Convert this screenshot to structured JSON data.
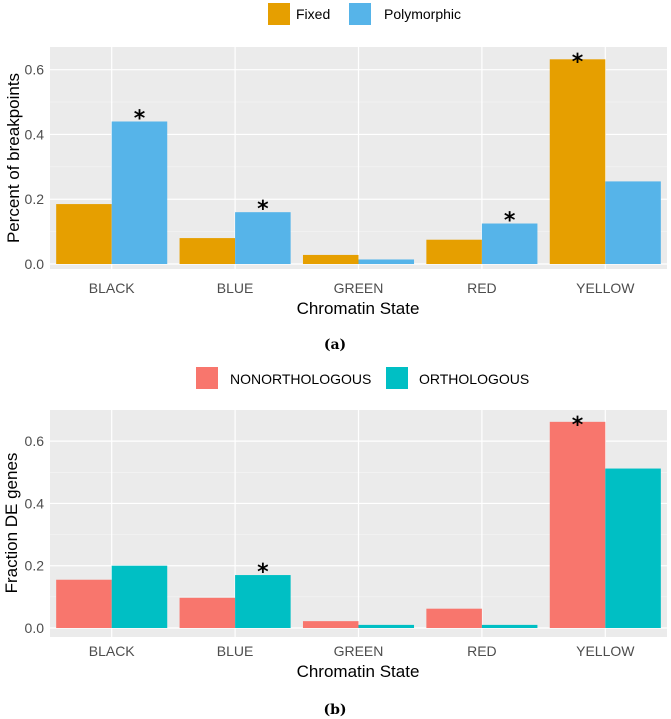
{
  "chart_data": [
    {
      "type": "bar",
      "panel_caption": "(a)",
      "categories": [
        "BLACK",
        "BLUE",
        "GREEN",
        "RED",
        "YELLOW"
      ],
      "series": [
        {
          "name": "Fixed",
          "color": "#E69F00",
          "values": [
            0.185,
            0.08,
            0.028,
            0.075,
            0.632
          ]
        },
        {
          "name": "Polymorphic",
          "color": "#56B4E9",
          "values": [
            0.44,
            0.16,
            0.014,
            0.125,
            0.255
          ]
        }
      ],
      "annotations": [
        {
          "category": "BLACK",
          "series": "Polymorphic",
          "text": "*"
        },
        {
          "category": "BLUE",
          "series": "Polymorphic",
          "text": "*"
        },
        {
          "category": "RED",
          "series": "Polymorphic",
          "text": "*"
        },
        {
          "category": "YELLOW",
          "series": "Fixed",
          "text": "*"
        }
      ],
      "ylim": [
        0,
        0.67
      ],
      "yticks": [
        0.0,
        0.2,
        0.4,
        0.6
      ],
      "ytick_labels": [
        "0.0",
        "0.2",
        "0.4",
        "0.6"
      ],
      "xlabel": "Chromatin State",
      "ylabel": "Percent of breakpoints",
      "legend_position": "top"
    },
    {
      "type": "bar",
      "panel_caption": "(b)",
      "categories": [
        "BLACK",
        "BLUE",
        "GREEN",
        "RED",
        "YELLOW"
      ],
      "series": [
        {
          "name": "NONORTHOLOGOUS",
          "color": "#F8766D",
          "values": [
            0.155,
            0.097,
            0.022,
            0.062,
            0.662
          ]
        },
        {
          "name": "ORTHOLOGOUS",
          "color": "#00BFC4",
          "values": [
            0.2,
            0.17,
            0.01,
            0.01,
            0.512
          ]
        }
      ],
      "annotations": [
        {
          "category": "BLUE",
          "series": "ORTHOLOGOUS",
          "text": "*"
        },
        {
          "category": "YELLOW",
          "series": "NONORTHOLOGOUS",
          "text": "*"
        }
      ],
      "ylim": [
        0,
        0.7
      ],
      "yticks": [
        0.0,
        0.2,
        0.4,
        0.6
      ],
      "ytick_labels": [
        "0.0",
        "0.2",
        "0.4",
        "0.6"
      ],
      "xlabel": "Chromatin State",
      "ylabel": "Fraction DE genes",
      "legend_position": "top"
    }
  ]
}
